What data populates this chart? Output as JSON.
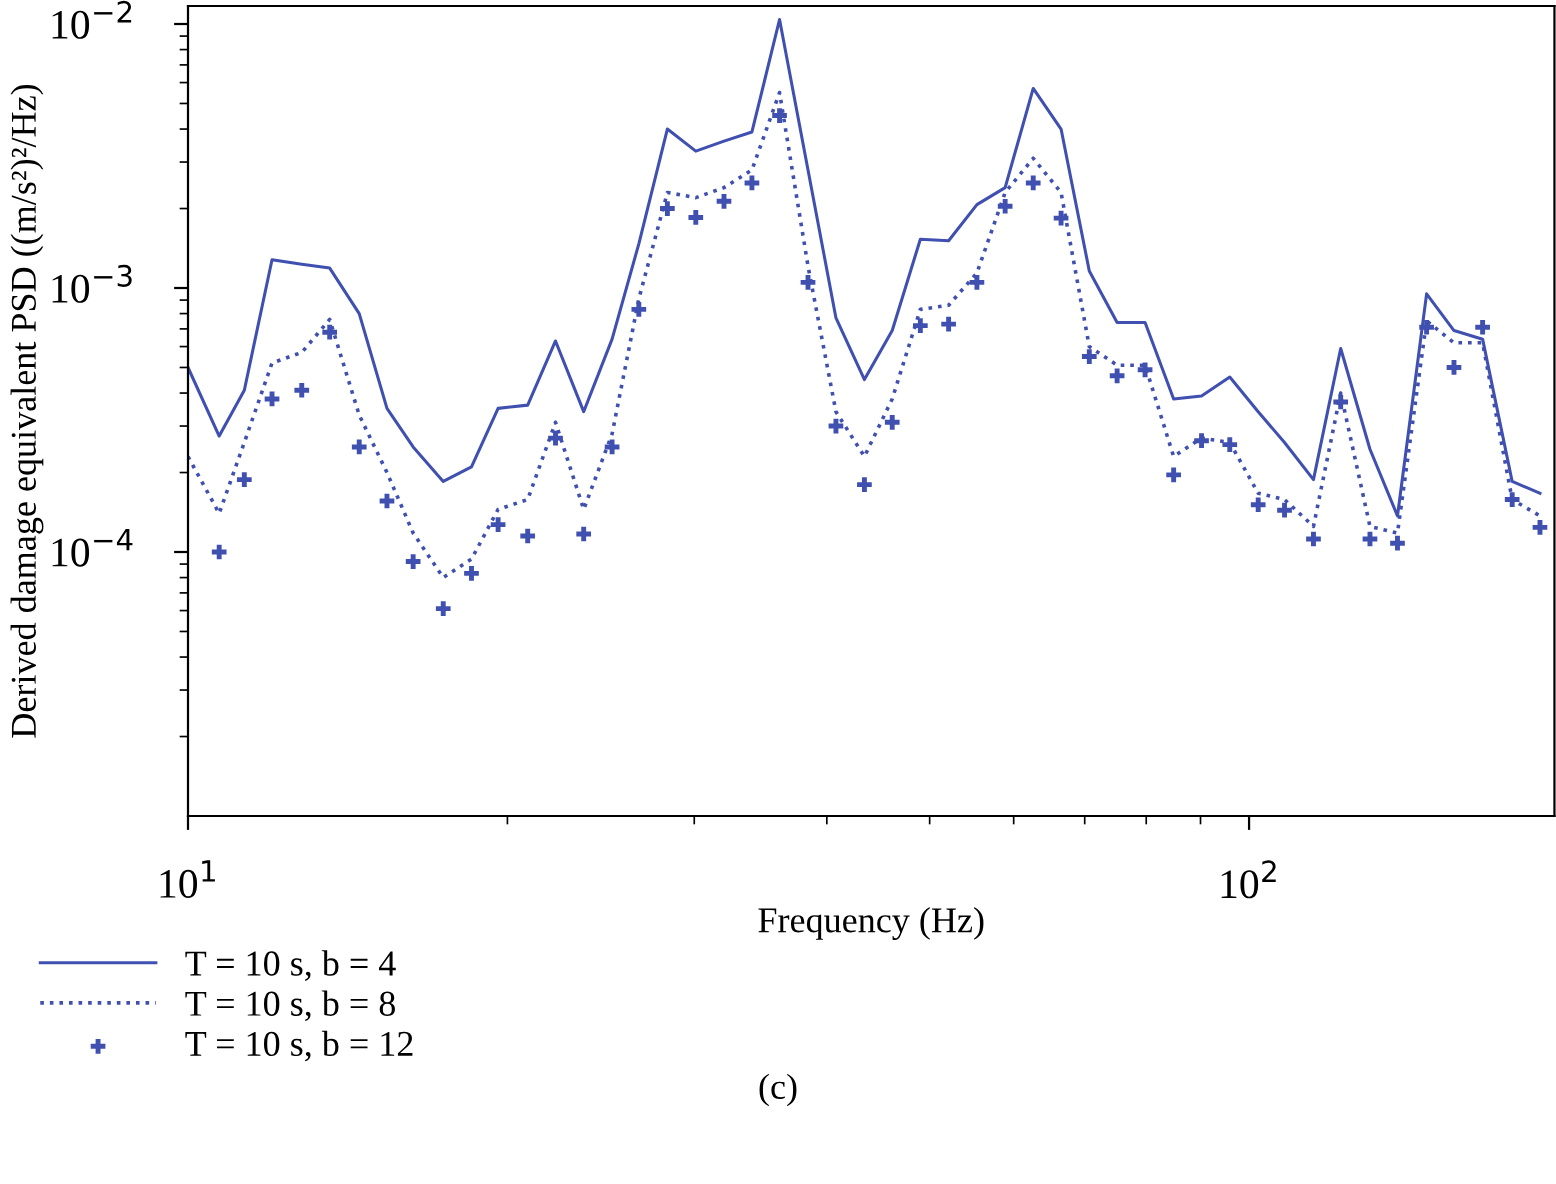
{
  "chart_data": {
    "type": "line",
    "xlabel": "Frequency (Hz)",
    "ylabel": "Derived damage equivalent PSD ((m/s²)²/Hz)",
    "annotations": [
      "(c)"
    ],
    "log": "xy",
    "x": [
      10.0,
      10.7,
      11.3,
      12.0,
      12.8,
      13.6,
      14.5,
      15.4,
      16.3,
      17.4,
      18.5,
      19.6,
      20.9,
      22.2,
      23.6,
      25.1,
      26.6,
      28.3,
      30.1,
      32.0,
      34.0,
      36.1,
      38.4,
      40.8,
      43.4,
      46.1,
      49.0,
      52.1,
      55.4,
      58.9,
      62.6,
      66.5,
      70.7,
      75.1,
      79.8,
      84.9,
      90.2,
      95.9,
      102,
      108,
      115,
      122,
      130,
      138,
      147,
      156,
      166,
      177,
      188
    ],
    "series": [
      {
        "name": "T = 10 s, b = 4",
        "line_style": "solid",
        "marker": "none",
        "color": "#4050b0",
        "values": [
          0.0005,
          0.000275,
          0.00041,
          0.00128,
          0.00123,
          0.00119,
          0.0008,
          0.00035,
          0.00025,
          0.000185,
          0.00021,
          0.00035,
          0.00036,
          0.00063,
          0.00034,
          0.00064,
          0.00147,
          0.004,
          0.0033,
          0.0036,
          0.0039,
          0.0104,
          0.0028,
          0.00077,
          0.00045,
          0.00069,
          0.00153,
          0.00151,
          0.00207,
          0.0024,
          0.0057,
          0.004,
          0.00116,
          0.00074,
          0.00074,
          0.00038,
          0.00039,
          0.00046,
          0.00034,
          0.00026,
          0.000188,
          0.00059,
          0.000245,
          0.000137,
          0.00095,
          0.00069,
          0.00064,
          0.000185,
          0.000167
        ]
      },
      {
        "name": "T = 10 s, b = 8",
        "line_style": "dotted",
        "marker": "none",
        "color": "#4050b0",
        "values": [
          0.00023,
          0.00014,
          0.00026,
          0.00052,
          0.00057,
          0.00076,
          0.00033,
          0.0002,
          0.000118,
          8e-05,
          9.4e-05,
          0.000145,
          0.000158,
          0.00031,
          0.000145,
          0.00028,
          0.00091,
          0.0023,
          0.0022,
          0.0024,
          0.0028,
          0.0055,
          0.00121,
          0.00034,
          0.00023,
          0.00038,
          0.00083,
          0.00086,
          0.00114,
          0.0023,
          0.0031,
          0.0023,
          0.0006,
          0.00051,
          0.00051,
          0.00023,
          0.00027,
          0.00026,
          0.000167,
          0.000158,
          0.000125,
          0.0004,
          0.000125,
          0.000118,
          0.00075,
          0.00062,
          0.00062,
          0.000158,
          0.000137
        ]
      },
      {
        "name": "T = 10 s, b = 12",
        "type": "scatter",
        "marker": "cross",
        "color": "#4050b0",
        "values": [
          null,
          0.0001,
          0.000188,
          0.00038,
          0.00041,
          0.00068,
          0.00025,
          0.000156,
          9.2e-05,
          6.1e-05,
          8.3e-05,
          0.000127,
          0.000115,
          0.00027,
          0.000117,
          0.00025,
          0.00083,
          0.002,
          0.00185,
          0.00213,
          0.0025,
          0.0045,
          0.00105,
          0.0003,
          0.00018,
          0.00031,
          0.00072,
          0.00073,
          0.00105,
          0.00204,
          0.0025,
          0.00184,
          0.00055,
          0.000465,
          0.00049,
          0.000196,
          0.000264,
          0.000255,
          0.000151,
          0.000144,
          0.000112,
          0.00037,
          0.000112,
          0.000108,
          0.00071,
          0.0005,
          0.00071,
          0.000158,
          0.000124
        ]
      }
    ],
    "xlim": [
      10,
      194
    ],
    "ylim": [
      1e-05,
      0.0117
    ],
    "xticks": [
      {
        "value": 10,
        "label": "10$^{1}$"
      },
      {
        "value": 100,
        "label": "10$^{2}$"
      }
    ],
    "yticks": [
      {
        "value": 0.0001,
        "label": "10$^{−4}$"
      },
      {
        "value": 0.001,
        "label": "10$^{−3}$"
      },
      {
        "value": 0.01,
        "label": "10$^{−2}$"
      }
    ],
    "grid": false,
    "legend": "bottom left"
  }
}
